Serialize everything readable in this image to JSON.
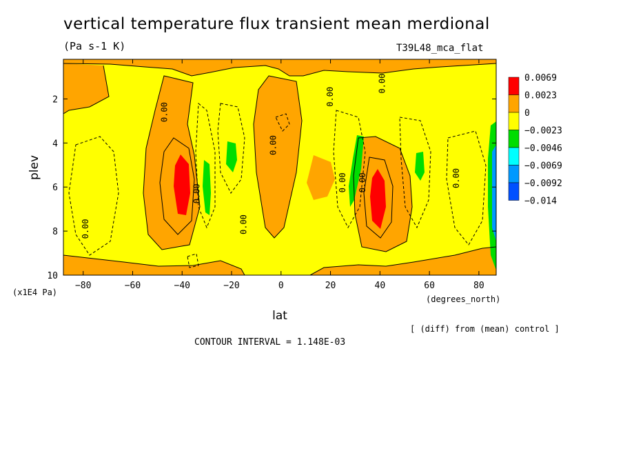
{
  "title": "vertical temperature flux transient mean merdional",
  "units": "(Pa s-1 K)",
  "run_name": "T39L48_mca_flat",
  "diff_note": "[ (diff) from (mean) control ]",
  "contour_interval": "CONTOUR INTERVAL = 1.148E-03",
  "chart_data": {
    "type": "heatmap",
    "xlabel": "lat",
    "xunit": "(degrees_north)",
    "ylabel": "plev",
    "yunit": "(x1E4 Pa)",
    "xlim": [
      -88,
      87
    ],
    "ylim": [
      10,
      0.2
    ],
    "x_ticks": [
      -80,
      -60,
      -40,
      -20,
      0,
      20,
      40,
      60,
      80
    ],
    "x_tick_labels": [
      "−80",
      "−60",
      "−40",
      "−20",
      "0",
      "20",
      "40",
      "60",
      "80"
    ],
    "y_ticks": [
      2,
      4,
      6,
      8,
      10
    ],
    "y_tick_labels": [
      "2",
      "4",
      "6",
      "8",
      "10"
    ],
    "legend": {
      "placement": "right",
      "levels": [
        "0.0069",
        "0.0023",
        "0",
        "−0.0023",
        "−0.0046",
        "−0.0069",
        "−0.0092",
        "−0.014"
      ],
      "colors": [
        "#ff0000",
        "#ffa500",
        "#ffff00",
        "#00dd00",
        "#00ffff",
        "#0099ff",
        "#0050ff"
      ]
    },
    "colors": {
      "positive_high": "#ff0000",
      "positive": "#ffa500",
      "neutral": "#ffff00",
      "negative": "#00dd00",
      "strong_negative": "#0050ff"
    },
    "contour_labels": [
      {
        "text": "0.00",
        "lat": -78,
        "plev": 7.9
      },
      {
        "text": "0.00",
        "lat": -46,
        "plev": 2.6
      },
      {
        "text": "0.00",
        "lat": -33,
        "plev": 6.3
      },
      {
        "text": "0.00",
        "lat": -14,
        "plev": 7.7
      },
      {
        "text": "0.00",
        "lat": -2,
        "plev": 4.1
      },
      {
        "text": "0.00",
        "lat": 21,
        "plev": 1.9
      },
      {
        "text": "0.00",
        "lat": 26,
        "plev": 5.8
      },
      {
        "text": "0.00",
        "lat": 34,
        "plev": 5.8
      },
      {
        "text": "0.00",
        "lat": 42,
        "plev": 1.3
      },
      {
        "text": "0.00",
        "lat": 72,
        "plev": 5.6
      }
    ]
  }
}
